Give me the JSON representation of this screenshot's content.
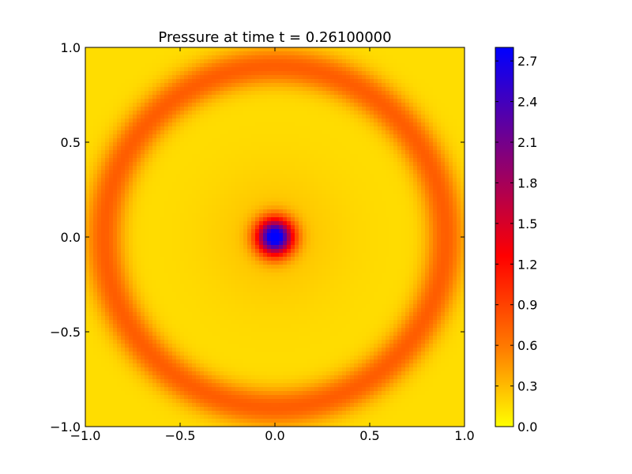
{
  "chart_data": {
    "type": "heatmap",
    "title": "Pressure at time t =     0.26100000",
    "xlabel": "",
    "ylabel": "",
    "xlim": [
      -1.0,
      1.0
    ],
    "ylim": [
      -1.0,
      1.0
    ],
    "x_ticks": [
      -1.0,
      -0.5,
      0.0,
      0.5,
      1.0
    ],
    "x_tick_labels": [
      "−1.0",
      "−0.5",
      "0.0",
      "0.5",
      "1.0"
    ],
    "y_ticks": [
      1.0,
      0.5,
      0.0,
      -0.5,
      -1.0
    ],
    "y_tick_labels": [
      "1.0",
      "0.5",
      "0.0",
      "−0.5",
      "−1.0"
    ],
    "field": {
      "description_free": true,
      "center": [
        0.0,
        0.0
      ],
      "peak_value": 2.8,
      "ring_radius": 0.9,
      "ring_value": 0.75,
      "background_value": 0.15
    },
    "colorbar": {
      "range": [
        0.0,
        2.8
      ],
      "ticks": [
        0.0,
        0.3,
        0.6,
        0.9,
        1.2,
        1.5,
        1.8,
        2.1,
        2.4,
        2.7
      ],
      "tick_labels": [
        "0.0",
        "0.3",
        "0.6",
        "0.9",
        "1.2",
        "1.5",
        "1.8",
        "2.1",
        "2.4",
        "2.7"
      ],
      "colors": [
        "#ffff00",
        "#ff8000",
        "#ff0000",
        "#0000ff"
      ]
    },
    "grid": false
  }
}
